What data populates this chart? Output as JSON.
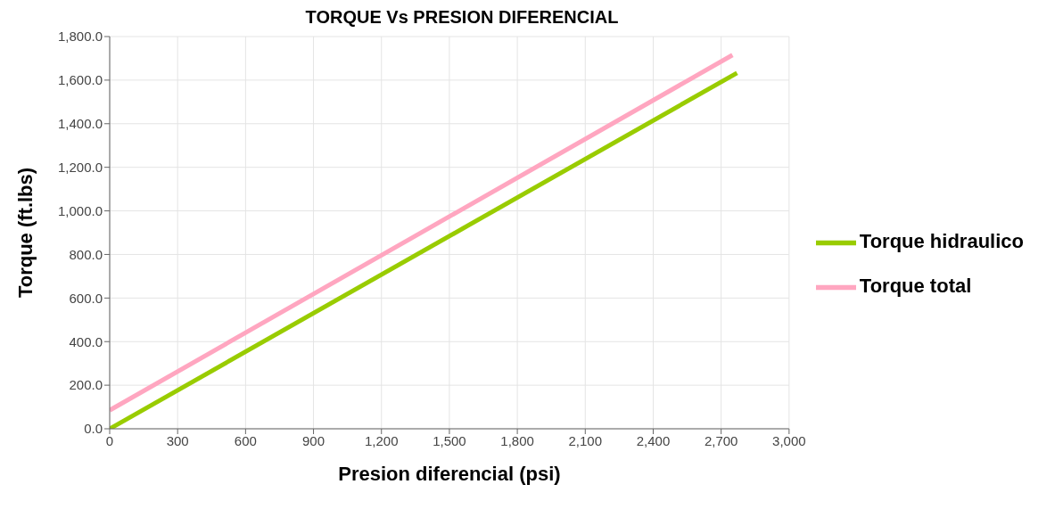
{
  "chart_data": {
    "type": "line",
    "title": "TORQUE  Vs PRESION DIFERENCIAL",
    "xlabel": "Presion diferencial (psi)",
    "ylabel": "Torque (ft.lbs)",
    "series": [
      {
        "name": "Torque hidraulico",
        "color": "#99cc00",
        "x": [
          0,
          2770
        ],
        "values": [
          0,
          1633
        ]
      },
      {
        "name": "Torque total",
        "color": "#ffa6c0",
        "x": [
          0,
          2750
        ],
        "values": [
          85,
          1715
        ]
      }
    ],
    "xlim": [
      0,
      3000
    ],
    "ylim": [
      0,
      1800
    ],
    "xticks": [
      0,
      300,
      600,
      900,
      {
        "value": 1200,
        "label": "1,200"
      },
      {
        "value": 1500,
        "label": "1,500"
      },
      {
        "value": 1800,
        "label": "1,800"
      },
      {
        "value": 2100,
        "label": "2,100"
      },
      {
        "value": 2400,
        "label": "2,400"
      },
      {
        "value": 2700,
        "label": "2,700"
      },
      {
        "value": 3000,
        "label": "3,000"
      }
    ],
    "yticks": [
      {
        "value": 0,
        "label": "0.0"
      },
      {
        "value": 200,
        "label": "200.0"
      },
      {
        "value": 400,
        "label": "400.0"
      },
      {
        "value": 600,
        "label": "600.0"
      },
      {
        "value": 800,
        "label": "800.0"
      },
      {
        "value": 1000,
        "label": "1,000.0"
      },
      {
        "value": 1200,
        "label": "1,200.0"
      },
      {
        "value": 1400,
        "label": "1,400.0"
      },
      {
        "value": 1600,
        "label": "1,600.0"
      },
      {
        "value": 1800,
        "label": "1,800.0"
      }
    ],
    "grid": true,
    "legend": "right",
    "marker": "none",
    "line_style": "solid"
  }
}
